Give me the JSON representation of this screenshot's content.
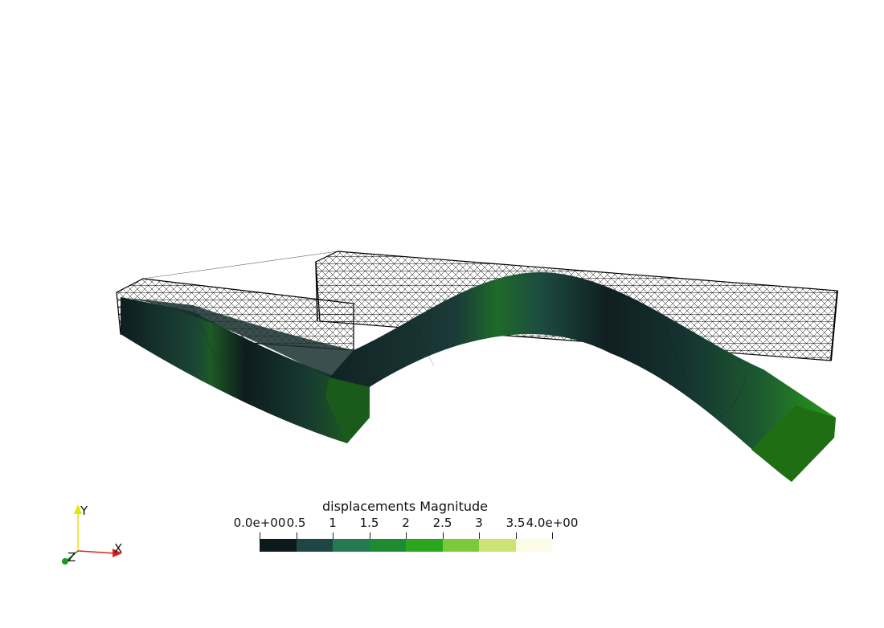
{
  "scalar_bar": {
    "title": "displacements Magnitude",
    "tick_labels": [
      "0.0e+00",
      "0.5",
      "1",
      "1.5",
      "2",
      "2.5",
      "3",
      "3.5",
      "4.0e+00"
    ],
    "range": [
      0,
      4
    ],
    "colors": [
      "#0d1a1c",
      "#1c4744",
      "#237a53",
      "#1e8a32",
      "#2aa71d",
      "#7ec93b",
      "#cde474",
      "#fbfbe6"
    ]
  },
  "orientation_axes": {
    "x_label": "X",
    "y_label": "Y",
    "z_label": "Z",
    "x_color": "#d62020",
    "y_color": "#e6e600",
    "z_color": "#1a9a1a"
  },
  "scene": {
    "deformed_color_near": "#16282a",
    "deformed_color_mid": "#1e5a3c",
    "deformed_color_far": "#2a9a1a",
    "wireframe_color": "#000000"
  }
}
